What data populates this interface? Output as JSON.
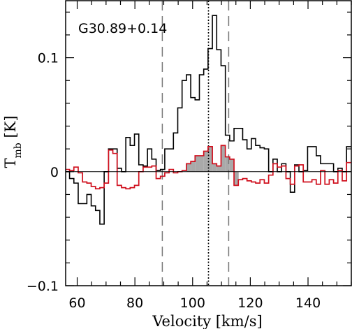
{
  "chart_data": {
    "type": "line",
    "drawstyle": "steps",
    "title": "G30.89+0.14",
    "xlabel": "Velocity [km/s]",
    "ylabel_main": "T",
    "ylabel_sub": "mb",
    "ylabel_unit": " [K]",
    "xlim": [
      56,
      155
    ],
    "ylim": [
      -0.1,
      0.15
    ],
    "xticks_major": [
      60,
      80,
      100,
      120,
      140
    ],
    "xtick_labels": [
      "60",
      "80",
      "100",
      "120",
      "140"
    ],
    "yticks_major": [
      -0.1,
      0,
      0.1
    ],
    "ytick_labels": [
      "−0.1",
      "0",
      "0.1"
    ],
    "vlines": [
      {
        "x": 89.5,
        "style": "dashed"
      },
      {
        "x": 105.5,
        "style": "dotted"
      },
      {
        "x": 112.5,
        "style": "dashed"
      }
    ],
    "fill_range": [
      98,
      116
    ],
    "series": [
      {
        "color": "#000000",
        "x": [
          56.6,
          58.1,
          59.6,
          61.1,
          62.6,
          64.1,
          65.6,
          67.1,
          68.6,
          70.1,
          71.6,
          73.1,
          74.6,
          76.1,
          77.6,
          79.1,
          80.6,
          82.1,
          83.6,
          85.1,
          86.6,
          88.1,
          89.6,
          91.1,
          92.6,
          94.1,
          95.6,
          97.1,
          98.6,
          100.1,
          101.6,
          103.1,
          104.6,
          106.1,
          107.6,
          109.1,
          110.6,
          112.1,
          113.6,
          115.1,
          116.6,
          118.1,
          119.6,
          121.1,
          122.6,
          124.1,
          125.6,
          127.1,
          128.6,
          130.1,
          131.6,
          133.1,
          134.6,
          136.1,
          137.6,
          139.1,
          140.6,
          142.1,
          143.6,
          145.1,
          146.6,
          148.1,
          149.6,
          151.1,
          152.6,
          154.1
        ],
        "y": [
          0.0,
          -0.006,
          -0.01,
          -0.028,
          -0.028,
          -0.02,
          -0.03,
          -0.034,
          -0.046,
          0.0,
          0.02,
          0.02,
          0.003,
          0.0,
          0.03,
          0.023,
          0.033,
          0.006,
          0.005,
          0.02,
          0.011,
          0.001,
          0.002,
          0.02,
          0.02,
          0.034,
          0.056,
          0.08,
          0.085,
          0.065,
          0.063,
          0.085,
          0.09,
          0.108,
          0.137,
          0.107,
          0.093,
          0.032,
          0.027,
          0.038,
          0.038,
          0.028,
          0.02,
          0.029,
          0.023,
          0.021,
          0.02,
          0.0,
          0.011,
          0.0,
          0.007,
          0.0,
          -0.018,
          0.006,
          0.0,
          0.001,
          0.022,
          0.022,
          0.014,
          0.007,
          0.007,
          0.007,
          0.0,
          0.003,
          0.0,
          0.022
        ]
      },
      {
        "color": "#d0101e",
        "x": [
          56.6,
          58.1,
          59.6,
          61.1,
          62.6,
          64.1,
          65.6,
          67.1,
          68.6,
          70.1,
          71.6,
          73.1,
          74.6,
          76.1,
          77.6,
          79.1,
          80.6,
          82.1,
          83.6,
          85.1,
          86.6,
          88.1,
          89.6,
          91.1,
          92.6,
          94.1,
          95.6,
          97.1,
          98.6,
          100.1,
          101.6,
          103.1,
          104.6,
          106.1,
          107.6,
          109.1,
          110.6,
          112.1,
          113.6,
          115.1,
          116.6,
          118.1,
          119.6,
          121.1,
          122.6,
          124.1,
          125.6,
          127.1,
          128.6,
          130.1,
          131.6,
          133.1,
          134.6,
          136.1,
          137.6,
          139.1,
          140.6,
          142.1,
          143.6,
          145.1,
          146.6,
          148.1,
          149.6,
          151.1,
          152.6,
          154.1
        ],
        "y": [
          0.002,
          0.001,
          0.004,
          -0.001,
          -0.009,
          -0.01,
          -0.013,
          -0.015,
          -0.014,
          -0.01,
          0.019,
          0.016,
          -0.012,
          -0.014,
          -0.015,
          -0.014,
          -0.012,
          0.0,
          0.004,
          0.004,
          0.005,
          -0.006,
          -0.004,
          -0.001,
          0.002,
          -0.001,
          0.0,
          0.001,
          0.007,
          0.009,
          0.014,
          0.014,
          0.018,
          0.022,
          0.007,
          0.005,
          0.023,
          0.013,
          0.011,
          -0.012,
          -0.007,
          -0.006,
          -0.008,
          -0.009,
          -0.01,
          -0.007,
          -0.01,
          -0.003,
          0.007,
          0.004,
          0.005,
          -0.006,
          -0.011,
          0.005,
          0.006,
          -0.009,
          -0.009,
          -0.007,
          -0.011,
          0.001,
          -0.011,
          -0.007,
          -0.01,
          0.001,
          -0.008,
          0.008
        ]
      }
    ]
  }
}
